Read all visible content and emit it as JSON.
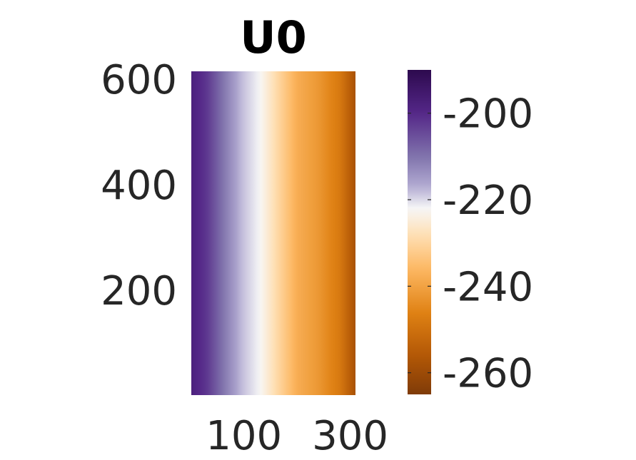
{
  "chart_data": {
    "type": "heatmap",
    "title": "U0",
    "xlabel": "",
    "ylabel": "",
    "x_range": [
      1,
      310
    ],
    "y_range": [
      1,
      615
    ],
    "x_ticks": [
      100,
      300
    ],
    "y_ticks": [
      200,
      400,
      600
    ],
    "color_range": [
      -265,
      -190
    ],
    "colorbar_ticks": [
      -200,
      -220,
      -240,
      -260
    ],
    "colormap": "purple-orange (PuOr)",
    "colormap_stops": [
      {
        "value": -190,
        "color": "#2d0a4e"
      },
      {
        "value": -200,
        "color": "#542788"
      },
      {
        "value": -210,
        "color": "#8073ac"
      },
      {
        "value": -217,
        "color": "#b2abd2"
      },
      {
        "value": -222,
        "color": "#f7f7f7"
      },
      {
        "value": -228,
        "color": "#fee0b6"
      },
      {
        "value": -236,
        "color": "#fdb863"
      },
      {
        "value": -246,
        "color": "#e08214"
      },
      {
        "value": -256,
        "color": "#b35806"
      },
      {
        "value": -265,
        "color": "#7f3b08"
      }
    ],
    "field_profile_along_x": [
      {
        "x": 1,
        "value": -198
      },
      {
        "x": 30,
        "value": -202
      },
      {
        "x": 60,
        "value": -210
      },
      {
        "x": 95,
        "value": -218
      },
      {
        "x": 130,
        "value": -222
      },
      {
        "x": 165,
        "value": -230
      },
      {
        "x": 200,
        "value": -238
      },
      {
        "x": 240,
        "value": -242
      },
      {
        "x": 280,
        "value": -248
      },
      {
        "x": 310,
        "value": -258
      }
    ],
    "grid": false,
    "colorbar_position": "right"
  }
}
